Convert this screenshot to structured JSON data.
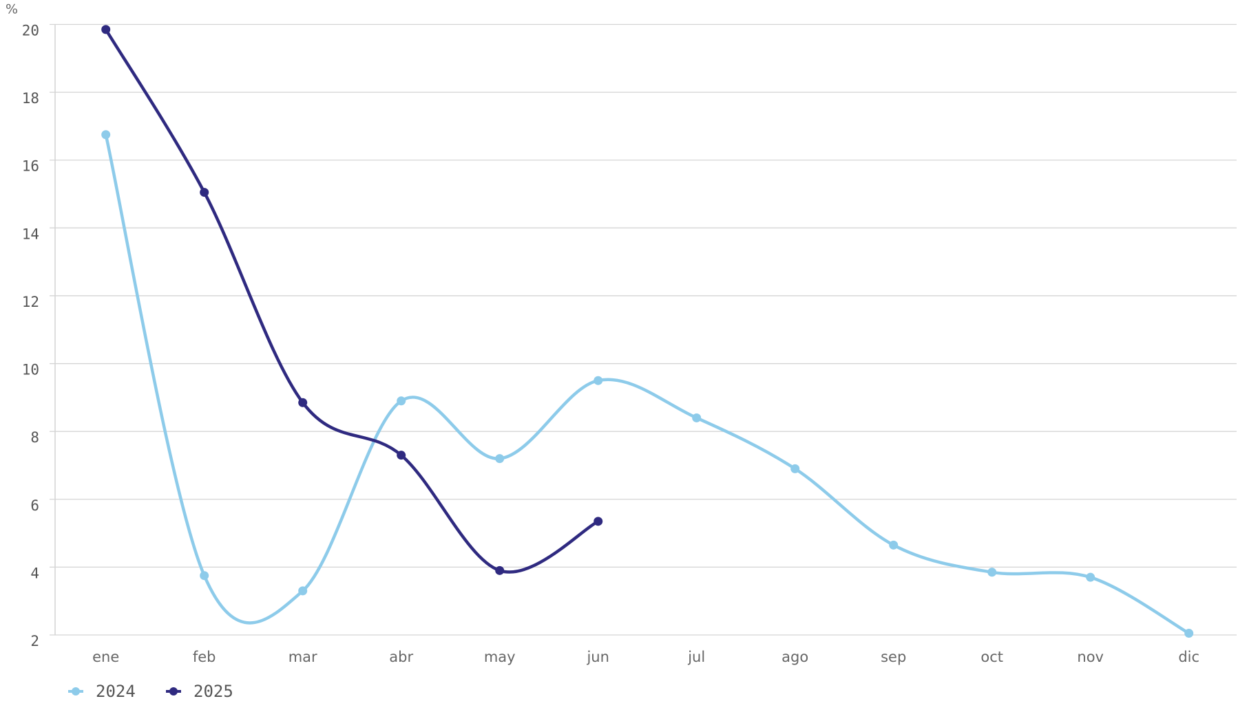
{
  "chart_data": {
    "type": "line",
    "y_label": "%",
    "categories": [
      "ene",
      "feb",
      "mar",
      "abr",
      "may",
      "jun",
      "jul",
      "ago",
      "sep",
      "oct",
      "nov",
      "dic"
    ],
    "series": [
      {
        "name": "2024",
        "color": "#8dcbea",
        "values": [
          16.75,
          3.75,
          3.3,
          8.9,
          7.2,
          9.5,
          8.4,
          6.9,
          4.65,
          3.85,
          3.7,
          2.05
        ]
      },
      {
        "name": "2025",
        "color": "#2f2a80",
        "values": [
          19.85,
          15.05,
          8.85,
          7.3,
          3.9,
          5.35,
          null,
          null,
          null,
          null,
          null,
          null
        ]
      }
    ],
    "ylim": [
      2,
      20
    ],
    "yticks": [
      2,
      4,
      6,
      8,
      10,
      12,
      14,
      16,
      18,
      20
    ],
    "grid": true,
    "legend": "bottom-left"
  }
}
